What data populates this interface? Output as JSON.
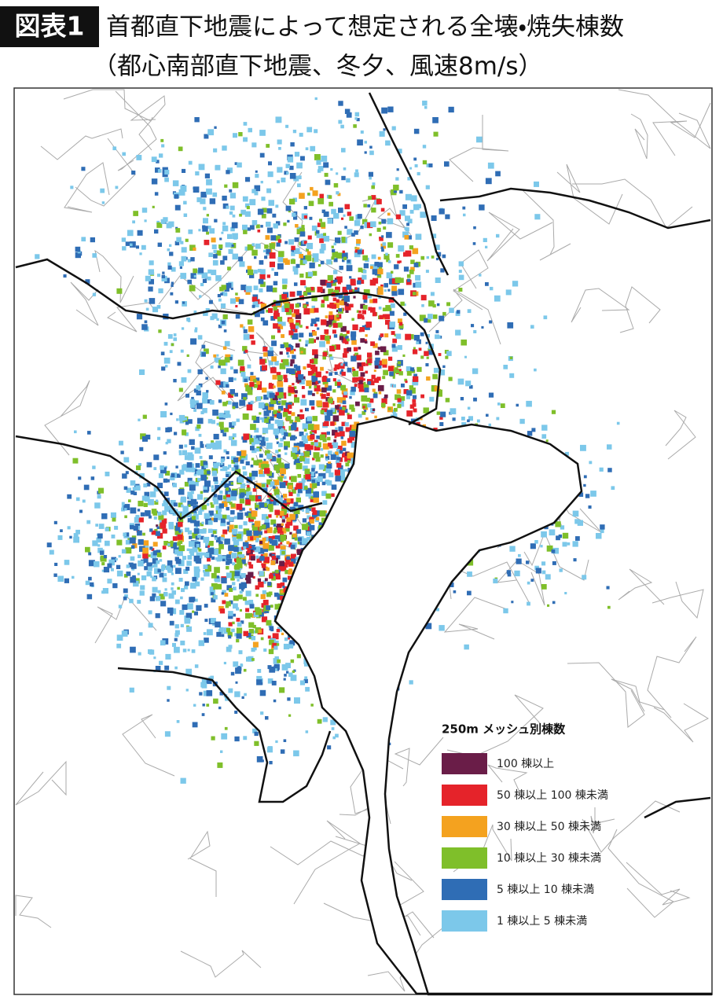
{
  "header": {
    "label": "図表1",
    "title": "首都直下地震によって想定される全壊・焼失棟数",
    "subtitle": "（都心南部直下地震、冬夕、風速8m/s）"
  },
  "legend": {
    "title": "250m メッシュ別棟数",
    "items": [
      {
        "label": "100 棟以上",
        "color": "#6a1d48"
      },
      {
        "label": "50 棟以上 100 棟未満",
        "color": "#e5232a"
      },
      {
        "label": "30 棟以上 50 棟未満",
        "color": "#f4a21f"
      },
      {
        "label": "10 棟以上 30 棟未満",
        "color": "#7fbf2a"
      },
      {
        "label": "5 棟以上 10 棟未満",
        "color": "#2f6db5"
      },
      {
        "label": "1 棟以上 5 棟未満",
        "color": "#7cc8ea"
      }
    ]
  }
}
